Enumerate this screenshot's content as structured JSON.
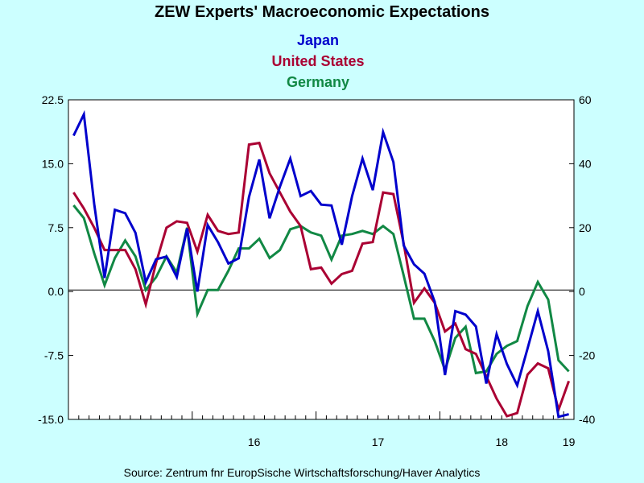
{
  "chart_data": {
    "type": "line",
    "title": "ZEW Experts' Macroeconomic Expectations",
    "source": "Source:  Zentrum fnr EuropSische Wirtschaftsforschung/Haver Analytics",
    "left_axis": {
      "ylim": [
        -15,
        22.5
      ],
      "ticks": [
        "22.5",
        "15.0",
        "7.5",
        "0.0",
        "-7.5",
        "-15.0"
      ]
    },
    "right_axis": {
      "ylim": [
        -40,
        60
      ],
      "ticks": [
        "60",
        "40",
        "20",
        "0",
        "-20",
        "-40"
      ]
    },
    "x_tick_labels": [
      "16",
      "17",
      "18",
      "19"
    ],
    "grid": false,
    "zero_line": true,
    "series": [
      {
        "name": "Japan",
        "color": "#0000cc",
        "axis": "left",
        "values": [
          18.3,
          20.8,
          10.3,
          1.6,
          9.6,
          9.2,
          6.9,
          1.1,
          3.8,
          4.1,
          1.7,
          7.4,
          0.0,
          7.8,
          5.8,
          3.3,
          3.9,
          11.1,
          15.5,
          8.6,
          12.3,
          15.6,
          11.2,
          11.8,
          10.2,
          10.1,
          5.5,
          11.2,
          15.6,
          11.9,
          18.7,
          15.2,
          5.4,
          3.2,
          2.1,
          -1.2,
          -9.8,
          -2.3,
          -2.7,
          -4.1,
          -10.8,
          -5.0,
          -8.5,
          -11.0,
          -6.7,
          -2.3,
          -7.0,
          -14.7,
          -14.4
        ]
      },
      {
        "name": "United States",
        "color": "#aa0033",
        "axis": "right",
        "values": [
          31,
          26,
          20,
          13,
          13,
          13,
          7,
          -4,
          9,
          20,
          22,
          21.5,
          12.5,
          24,
          19,
          18,
          18.5,
          46,
          46.5,
          37,
          31,
          25,
          20.5,
          7,
          7.5,
          2.5,
          5.5,
          6.5,
          15,
          15.5,
          31,
          30.5,
          15,
          -3.5,
          1,
          -3.5,
          -12.5,
          -10,
          -18,
          -19.5,
          -26.5,
          -33.5,
          -39,
          -38,
          -26,
          -22.5,
          -24,
          -37,
          -28
        ]
      },
      {
        "name": "Germany",
        "color": "#118844",
        "axis": "right",
        "values": [
          27,
          23,
          12,
          2,
          10.5,
          16,
          11,
          0.5,
          4.5,
          11,
          6,
          20,
          -7,
          0.5,
          0.5,
          6.5,
          13.5,
          13.5,
          16.5,
          10.5,
          13,
          19.5,
          20.5,
          18.5,
          17.5,
          10,
          17.5,
          18,
          19,
          18,
          20.5,
          18,
          5,
          -8.5,
          -8.5,
          -15.5,
          -24.5,
          -14.5,
          -11,
          -25.5,
          -25,
          -19.5,
          -17,
          -15.5,
          -4.5,
          3,
          -2.5,
          -21.5,
          -25
        ]
      }
    ]
  }
}
